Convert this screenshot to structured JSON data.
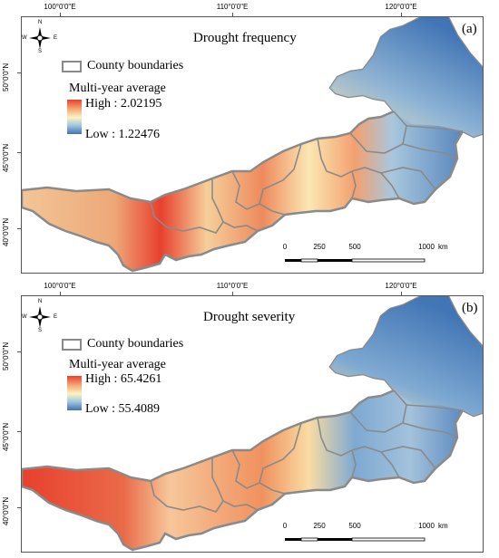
{
  "axes": {
    "longitude_ticks": [
      "100°0'0\"E",
      "110°0'0\"E",
      "120°0'0\"E"
    ],
    "latitude_ticks": [
      "50°0'0\"N",
      "45°0'0\"N",
      "40°0'0\"N"
    ]
  },
  "compass": {
    "north": "N",
    "south": "S",
    "east": "E",
    "west": "W"
  },
  "scale_bar": {
    "ticks": [
      "0",
      "250",
      "500",
      "1000"
    ],
    "unit": "km"
  },
  "panels": [
    {
      "label": "(a)",
      "title": "Drought frequency",
      "legend": {
        "boundary_label": "County boundaries",
        "heading": "Multi-year average",
        "high": "High : 2.02195",
        "low": "Low : 1.22476"
      },
      "colors": {
        "west": "#f2b98b",
        "center": "#e8402e",
        "northeast": "#3f73b4",
        "east": "#f3a06f"
      }
    },
    {
      "label": "(b)",
      "title": "Drought severity",
      "legend": {
        "boundary_label": "County boundaries",
        "heading": "Multi-year average",
        "high": "High : 65.4261",
        "low": "Low : 55.4089"
      },
      "colors": {
        "west": "#e8402e",
        "center": "#f2a575",
        "northeast": "#3f73b4",
        "east": "#7ea9d2"
      }
    }
  ],
  "ramp_colors": {
    "high": "#e8402e",
    "mid": "#fbf3c2",
    "low": "#3f73b4"
  }
}
